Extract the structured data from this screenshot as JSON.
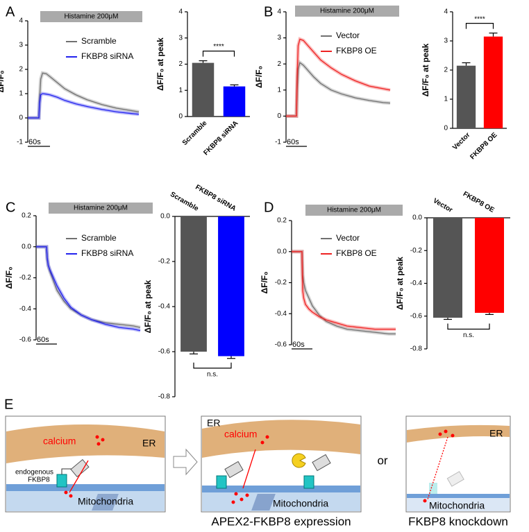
{
  "panel_labels": [
    "A",
    "B",
    "C",
    "D"
  ],
  "chart_data": [
    {
      "type": "line",
      "stimulus": "Histamine 200μM",
      "ylabel": "ΔF/F₀",
      "xlim": [
        0,
        300
      ],
      "ylim": [
        -1,
        4
      ],
      "yticks": [
        -1,
        0,
        1,
        2,
        3,
        4
      ],
      "scale_bar": {
        "value": 60,
        "label": "60s"
      },
      "x": [
        0,
        10,
        20,
        30,
        32,
        35,
        40,
        50,
        60,
        80,
        100,
        130,
        160,
        200,
        240,
        280,
        300
      ],
      "series": [
        {
          "name": "Scramble",
          "color": "#707070",
          "values": [
            0,
            0,
            0,
            0,
            0.8,
            1.6,
            1.85,
            1.82,
            1.7,
            1.45,
            1.2,
            0.95,
            0.75,
            0.55,
            0.4,
            0.3,
            0.25
          ]
        },
        {
          "name": "FKBP8 siRNA",
          "color": "#2222ee",
          "values": [
            0,
            0,
            0,
            0,
            0.6,
            0.95,
            1.0,
            0.98,
            0.95,
            0.85,
            0.72,
            0.58,
            0.47,
            0.35,
            0.25,
            0.18,
            0.15
          ]
        }
      ]
    },
    {
      "type": "bar",
      "ylabel": "ΔF/F₀ at peak",
      "categories": [
        "Scramble",
        "FKBP8 siRNA"
      ],
      "values": [
        2.05,
        1.15
      ],
      "errors": [
        0.08,
        0.06
      ],
      "colors": [
        "#555555",
        "#0000ff"
      ],
      "ylim": [
        0,
        4
      ],
      "yticks": [
        0,
        1,
        2,
        3,
        4
      ],
      "significance": "****"
    },
    {
      "type": "line",
      "stimulus": "Histamine 200μM",
      "ylabel": "ΔF/F₀",
      "xlim": [
        0,
        300
      ],
      "ylim": [
        -1,
        4
      ],
      "yticks": [
        -1,
        0,
        1,
        2,
        3,
        4
      ],
      "scale_bar": {
        "value": 60,
        "label": "60s"
      },
      "x": [
        0,
        10,
        20,
        30,
        32,
        35,
        40,
        50,
        60,
        80,
        100,
        130,
        160,
        200,
        240,
        280,
        300
      ],
      "series": [
        {
          "name": "Vector",
          "color": "#707070",
          "values": [
            0,
            0,
            0,
            0,
            1.0,
            1.8,
            2.05,
            1.95,
            1.8,
            1.5,
            1.25,
            1.0,
            0.85,
            0.7,
            0.6,
            0.52,
            0.5
          ]
        },
        {
          "name": "FKBP8 OE",
          "color": "#ee2222",
          "values": [
            0,
            0,
            0,
            0,
            1.5,
            2.7,
            2.95,
            2.9,
            2.75,
            2.45,
            2.15,
            1.85,
            1.6,
            1.35,
            1.15,
            1.05,
            1.0
          ]
        }
      ]
    },
    {
      "type": "bar",
      "ylabel": "ΔF/F₀ at peak",
      "categories": [
        "Vector",
        "FKBP8 OE"
      ],
      "values": [
        2.15,
        3.15
      ],
      "errors": [
        0.1,
        0.12
      ],
      "colors": [
        "#555555",
        "#ff0000"
      ],
      "ylim": [
        0,
        4
      ],
      "yticks": [
        0,
        1,
        2,
        3,
        4
      ],
      "significance": "****"
    },
    {
      "type": "line",
      "stimulus": "Histamine 200μM",
      "ylabel": "ΔF/F₀",
      "xlim": [
        0,
        300
      ],
      "ylim": [
        -0.6,
        0.2
      ],
      "yticks": [
        -0.6,
        -0.4,
        -0.2,
        {
          "value": 0,
          "label": "0.0"
        },
        0.2
      ],
      "scale_bar": {
        "value": 60,
        "label": "60s"
      },
      "x": [
        0,
        10,
        20,
        30,
        32,
        35,
        40,
        50,
        60,
        80,
        100,
        130,
        160,
        200,
        240,
        280,
        300
      ],
      "series": [
        {
          "name": "Scramble",
          "color": "#707070",
          "values": [
            0,
            0,
            0,
            0,
            -0.08,
            -0.12,
            -0.16,
            -0.22,
            -0.28,
            -0.35,
            -0.4,
            -0.44,
            -0.47,
            -0.49,
            -0.5,
            -0.51,
            -0.52
          ]
        },
        {
          "name": "FKBP8 siRNA",
          "color": "#2222ee",
          "values": [
            0,
            0,
            0,
            0,
            -0.07,
            -0.12,
            -0.15,
            -0.2,
            -0.25,
            -0.33,
            -0.39,
            -0.44,
            -0.47,
            -0.5,
            -0.52,
            -0.53,
            -0.54
          ]
        }
      ]
    },
    {
      "type": "bar",
      "ylabel": "ΔF/F₀ at peak",
      "categories": [
        "Scramble",
        "FKBP8 siRNA"
      ],
      "values": [
        -0.6,
        -0.62
      ],
      "errors": [
        0.01,
        0.01
      ],
      "colors": [
        "#555555",
        "#0000ff"
      ],
      "ylim": [
        -0.8,
        0
      ],
      "yticks": [
        -0.8,
        -0.6,
        -0.4,
        -0.2,
        {
          "value": 0,
          "label": "0.0"
        }
      ],
      "significance": "n.s."
    },
    {
      "type": "line",
      "stimulus": "Histamine 200μM",
      "ylabel": "ΔF/F₀",
      "xlim": [
        0,
        300
      ],
      "ylim": [
        -0.6,
        0.2
      ],
      "yticks": [
        -0.6,
        -0.4,
        -0.2,
        {
          "value": 0,
          "label": "0.0"
        },
        0.2
      ],
      "scale_bar": {
        "value": 60,
        "label": "60s"
      },
      "x": [
        0,
        10,
        20,
        30,
        32,
        35,
        40,
        50,
        60,
        80,
        100,
        130,
        160,
        200,
        240,
        280,
        300
      ],
      "series": [
        {
          "name": "Vector",
          "color": "#707070",
          "values": [
            0,
            0,
            0,
            0,
            -0.15,
            -0.2,
            -0.25,
            -0.3,
            -0.35,
            -0.41,
            -0.45,
            -0.48,
            -0.5,
            -0.51,
            -0.52,
            -0.53,
            -0.53
          ]
        },
        {
          "name": "FKBP8 OE",
          "color": "#ee2222",
          "values": [
            0,
            0,
            0,
            0,
            -0.25,
            -0.3,
            -0.34,
            -0.37,
            -0.39,
            -0.42,
            -0.44,
            -0.46,
            -0.48,
            -0.49,
            -0.5,
            -0.5,
            -0.5
          ]
        }
      ]
    },
    {
      "type": "bar",
      "ylabel": "ΔF/F₀ at peak",
      "categories": [
        "Vector",
        "FKBP8 OE"
      ],
      "values": [
        -0.61,
        -0.58
      ],
      "errors": [
        0.01,
        0.01
      ],
      "colors": [
        "#555555",
        "#ff0000"
      ],
      "ylim": [
        -0.8,
        0
      ],
      "yticks": [
        -0.8,
        -0.6,
        -0.4,
        -0.2,
        {
          "value": 0,
          "label": "0.0"
        }
      ],
      "significance": "n.s."
    }
  ],
  "diagram": {
    "label": "E",
    "connector": "or",
    "panels": [
      {
        "er": "ER",
        "calcium": "calcium",
        "protein": [
          "endogenous",
          "FKBP8"
        ],
        "mito": "Mitochondria"
      },
      {
        "er": "ER",
        "calcium": "calcium",
        "mito": "Mitochondria",
        "caption": "APEX2-FKBP8 expression"
      },
      {
        "er": "ER",
        "mito": "Mitochondria",
        "caption": "FKBP8 knockdown"
      }
    ]
  }
}
